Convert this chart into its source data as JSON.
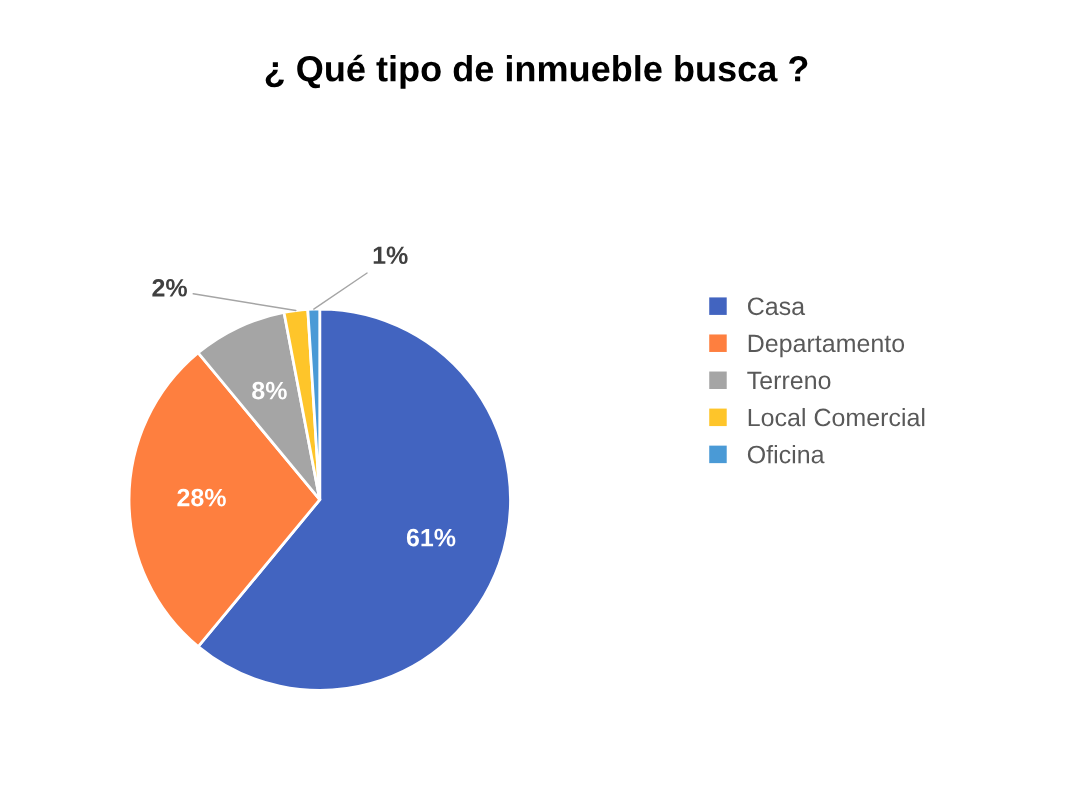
{
  "chart_data": {
    "type": "pie",
    "title": "¿ Qué tipo de inmueble busca ?",
    "categories": [
      "Casa",
      "Departamento",
      "Terreno",
      "Local Comercial",
      "Oficina"
    ],
    "values": [
      61,
      28,
      8,
      2,
      1
    ],
    "colors": [
      "#4264c0",
      "#fe7f3f",
      "#a5a5a5",
      "#fec52a",
      "#4a9ad6"
    ],
    "value_labels": [
      "61%",
      "28%",
      "8%",
      "2%",
      "1%"
    ],
    "legend": "right"
  }
}
